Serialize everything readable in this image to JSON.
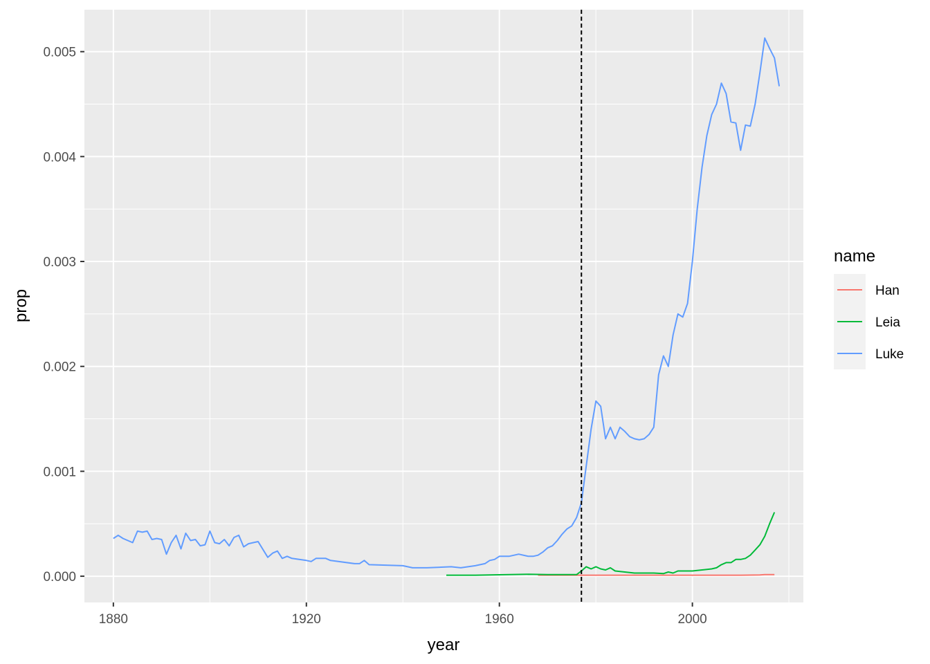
{
  "chart_data": {
    "type": "line",
    "title": "",
    "xlabel": "year",
    "ylabel": "prop",
    "xlim": [
      1874,
      2023
    ],
    "ylim": [
      -0.00025,
      0.0054
    ],
    "x_ticks": [
      1880,
      1920,
      1960,
      2000
    ],
    "x_tick_labels": [
      "1880",
      "1920",
      "1960",
      "2000"
    ],
    "y_ticks": [
      0.0,
      0.001,
      0.002,
      0.003,
      0.004,
      0.005
    ],
    "y_tick_labels": [
      "0.000",
      "0.001",
      "0.002",
      "0.003",
      "0.004",
      "0.005"
    ],
    "grid": true,
    "legend": {
      "title": "name",
      "position": "right"
    },
    "reference_line": {
      "orientation": "vertical",
      "x": 1977,
      "style": "dashed",
      "color": "#000000"
    },
    "series": [
      {
        "name": "Han",
        "color": "#F8766D",
        "points": [
          [
            1968,
            1e-05
          ],
          [
            1975,
            1e-05
          ],
          [
            1980,
            1e-05
          ],
          [
            1985,
            1e-05
          ],
          [
            1990,
            1e-05
          ],
          [
            1995,
            1e-05
          ],
          [
            2000,
            1e-05
          ],
          [
            2005,
            1e-05
          ],
          [
            2010,
            1e-05
          ],
          [
            2014,
            1.2e-05
          ],
          [
            2015,
            1.5e-05
          ],
          [
            2017,
            1.5e-05
          ]
        ]
      },
      {
        "name": "Leia",
        "color": "#00BA38",
        "points": [
          [
            1949,
            1e-05
          ],
          [
            1955,
            1e-05
          ],
          [
            1962,
            1.5e-05
          ],
          [
            1966,
            1.8e-05
          ],
          [
            1970,
            1.5e-05
          ],
          [
            1974,
            1.5e-05
          ],
          [
            1976,
            1.5e-05
          ],
          [
            1977,
            5e-05
          ],
          [
            1978,
            9e-05
          ],
          [
            1979,
            7e-05
          ],
          [
            1980,
            9e-05
          ],
          [
            1981,
            7e-05
          ],
          [
            1982,
            6e-05
          ],
          [
            1983,
            8e-05
          ],
          [
            1984,
            5e-05
          ],
          [
            1986,
            4e-05
          ],
          [
            1988,
            3e-05
          ],
          [
            1990,
            3e-05
          ],
          [
            1992,
            3e-05
          ],
          [
            1994,
            2.5e-05
          ],
          [
            1995,
            4e-05
          ],
          [
            1996,
            3e-05
          ],
          [
            1997,
            5e-05
          ],
          [
            2000,
            5e-05
          ],
          [
            2002,
            6e-05
          ],
          [
            2004,
            7e-05
          ],
          [
            2005,
            8e-05
          ],
          [
            2006,
            0.00011
          ],
          [
            2007,
            0.00013
          ],
          [
            2008,
            0.00013
          ],
          [
            2009,
            0.00016
          ],
          [
            2010,
            0.00016
          ],
          [
            2011,
            0.00017
          ],
          [
            2012,
            0.0002
          ],
          [
            2013,
            0.00025
          ],
          [
            2014,
            0.0003
          ],
          [
            2015,
            0.00038
          ],
          [
            2016,
            0.0005
          ],
          [
            2017,
            0.00061
          ]
        ]
      },
      {
        "name": "Luke",
        "color": "#619CFF",
        "points": [
          [
            1880,
            0.00036
          ],
          [
            1881,
            0.00039
          ],
          [
            1882,
            0.00036
          ],
          [
            1884,
            0.00032
          ],
          [
            1885,
            0.00043
          ],
          [
            1886,
            0.00042
          ],
          [
            1887,
            0.00043
          ],
          [
            1888,
            0.00035
          ],
          [
            1889,
            0.00036
          ],
          [
            1890,
            0.00035
          ],
          [
            1891,
            0.00021
          ],
          [
            1892,
            0.00032
          ],
          [
            1893,
            0.00039
          ],
          [
            1894,
            0.00026
          ],
          [
            1895,
            0.00041
          ],
          [
            1896,
            0.00034
          ],
          [
            1897,
            0.00035
          ],
          [
            1898,
            0.00029
          ],
          [
            1899,
            0.0003
          ],
          [
            1900,
            0.00043
          ],
          [
            1901,
            0.00032
          ],
          [
            1902,
            0.00031
          ],
          [
            1903,
            0.00035
          ],
          [
            1904,
            0.00029
          ],
          [
            1905,
            0.00037
          ],
          [
            1906,
            0.00039
          ],
          [
            1907,
            0.00028
          ],
          [
            1908,
            0.00031
          ],
          [
            1909,
            0.00032
          ],
          [
            1910,
            0.00033
          ],
          [
            1912,
            0.00018
          ],
          [
            1913,
            0.00022
          ],
          [
            1914,
            0.00024
          ],
          [
            1915,
            0.00017
          ],
          [
            1916,
            0.00019
          ],
          [
            1917,
            0.00017
          ],
          [
            1920,
            0.00015
          ],
          [
            1921,
            0.00014
          ],
          [
            1922,
            0.00017
          ],
          [
            1924,
            0.00017
          ],
          [
            1925,
            0.00015
          ],
          [
            1930,
            0.00012
          ],
          [
            1931,
            0.00012
          ],
          [
            1932,
            0.00015
          ],
          [
            1933,
            0.00011
          ],
          [
            1940,
            0.0001
          ],
          [
            1942,
            8e-05
          ],
          [
            1945,
            8e-05
          ],
          [
            1950,
            9e-05
          ],
          [
            1952,
            8e-05
          ],
          [
            1955,
            0.0001
          ],
          [
            1957,
            0.00012
          ],
          [
            1958,
            0.00015
          ],
          [
            1959,
            0.00016
          ],
          [
            1960,
            0.00019
          ],
          [
            1962,
            0.00019
          ],
          [
            1964,
            0.00021
          ],
          [
            1966,
            0.00019
          ],
          [
            1967,
            0.00019
          ],
          [
            1968,
            0.0002
          ],
          [
            1969,
            0.00023
          ],
          [
            1970,
            0.00027
          ],
          [
            1971,
            0.00029
          ],
          [
            1972,
            0.00034
          ],
          [
            1973,
            0.0004
          ],
          [
            1974,
            0.00045
          ],
          [
            1975,
            0.00048
          ],
          [
            1976,
            0.00056
          ],
          [
            1977,
            0.0007
          ],
          [
            1978,
            0.00105
          ],
          [
            1979,
            0.0014
          ],
          [
            1980,
            0.00167
          ],
          [
            1981,
            0.00162
          ],
          [
            1982,
            0.00131
          ],
          [
            1983,
            0.00142
          ],
          [
            1984,
            0.00131
          ],
          [
            1985,
            0.00142
          ],
          [
            1986,
            0.00138
          ],
          [
            1987,
            0.00133
          ],
          [
            1988,
            0.00131
          ],
          [
            1989,
            0.0013
          ],
          [
            1990,
            0.00131
          ],
          [
            1991,
            0.00135
          ],
          [
            1992,
            0.00142
          ],
          [
            1993,
            0.00192
          ],
          [
            1994,
            0.0021
          ],
          [
            1995,
            0.002
          ],
          [
            1996,
            0.0023
          ],
          [
            1997,
            0.0025
          ],
          [
            1998,
            0.00247
          ],
          [
            1999,
            0.0026
          ],
          [
            2000,
            0.003
          ],
          [
            2001,
            0.0035
          ],
          [
            2002,
            0.0039
          ],
          [
            2003,
            0.0042
          ],
          [
            2004,
            0.0044
          ],
          [
            2005,
            0.0045
          ],
          [
            2006,
            0.0047
          ],
          [
            2007,
            0.0046
          ],
          [
            2008,
            0.00433
          ],
          [
            2009,
            0.00432
          ],
          [
            2010,
            0.00406
          ],
          [
            2011,
            0.0043
          ],
          [
            2012,
            0.00429
          ],
          [
            2013,
            0.0045
          ],
          [
            2014,
            0.0048
          ],
          [
            2015,
            0.00513
          ],
          [
            2016,
            0.00503
          ],
          [
            2017,
            0.00494
          ],
          [
            2018,
            0.00467
          ]
        ]
      }
    ]
  }
}
